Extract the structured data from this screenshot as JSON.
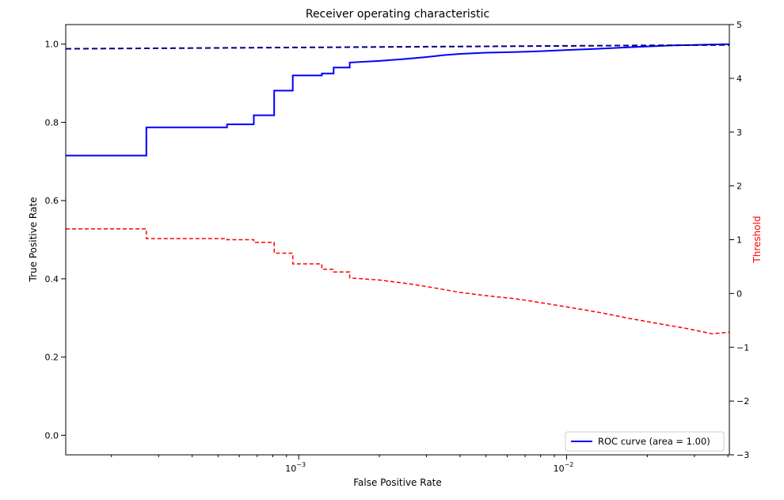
{
  "chart_data": {
    "type": "line",
    "title": "Receiver operating characteristic",
    "xlabel": "False Positive Rate",
    "ylabel": "True Positive Rate",
    "y2label": "Threshold",
    "x_scale": "log",
    "xlim": [
      0.000135,
      0.0405
    ],
    "ylim": [
      -0.05,
      1.05
    ],
    "y2lim": [
      -3,
      5
    ],
    "x_ticks": [
      {
        "value": 0.001,
        "base": "10",
        "exp": "−3"
      },
      {
        "value": 0.01,
        "base": "10",
        "exp": "−2"
      }
    ],
    "y_ticks": [
      "0.0",
      "0.2",
      "0.4",
      "0.6",
      "0.8",
      "1.0"
    ],
    "y2_ticks": [
      "−3",
      "−2",
      "−1",
      "0",
      "1",
      "2",
      "3",
      "4",
      "5"
    ],
    "legend": {
      "position": "lower-right",
      "entries": [
        "ROC curve (area = 1.00)"
      ]
    },
    "grid": false,
    "colors": {
      "roc": "#0000ff",
      "diagonal": "#000080",
      "threshold": "#ff0000",
      "threshold_label": "#ff0000"
    },
    "series": [
      {
        "name": "ROC curve (area = 1.00)",
        "axis": "left",
        "style": "solid-step",
        "x": [
          0.000135,
          0.00027,
          0.00027,
          0.00054,
          0.00054,
          0.00068,
          0.00068,
          0.00081,
          0.00081,
          0.00095,
          0.00095,
          0.00122,
          0.00122,
          0.00135,
          0.00135,
          0.00155,
          0.00155,
          0.002,
          0.0025,
          0.003,
          0.0035,
          0.004,
          0.005,
          0.0065,
          0.008,
          0.01,
          0.013,
          0.016,
          0.02,
          0.025,
          0.03,
          0.0405
        ],
        "y": [
          0.715,
          0.715,
          0.787,
          0.787,
          0.795,
          0.795,
          0.818,
          0.818,
          0.881,
          0.881,
          0.92,
          0.92,
          0.925,
          0.925,
          0.94,
          0.94,
          0.953,
          0.957,
          0.962,
          0.967,
          0.972,
          0.975,
          0.978,
          0.98,
          0.982,
          0.985,
          0.988,
          0.991,
          0.994,
          0.997,
          0.998,
          1.0
        ]
      },
      {
        "axis": "left",
        "style": "dashed",
        "x": [
          0.000135,
          0.0405
        ],
        "y": [
          0.988,
          0.998
        ]
      },
      {
        "axis": "right",
        "style": "dashed",
        "x": [
          0.000135,
          0.00027,
          0.00027,
          0.00054,
          0.00054,
          0.00068,
          0.00068,
          0.00081,
          0.00081,
          0.00095,
          0.00095,
          0.00122,
          0.00122,
          0.00135,
          0.00135,
          0.00155,
          0.00155,
          0.002,
          0.0025,
          0.003,
          0.004,
          0.005,
          0.0065,
          0.008,
          0.01,
          0.0135,
          0.017,
          0.022,
          0.028,
          0.035,
          0.0405
        ],
        "y": [
          1.2,
          1.2,
          1.02,
          1.02,
          1.0,
          1.0,
          0.95,
          0.95,
          0.75,
          0.75,
          0.55,
          0.55,
          0.45,
          0.45,
          0.4,
          0.4,
          0.29,
          0.25,
          0.19,
          0.13,
          0.02,
          -0.04,
          -0.1,
          -0.17,
          -0.25,
          -0.36,
          -0.46,
          -0.56,
          -0.65,
          -0.75,
          -0.72
        ]
      }
    ]
  }
}
